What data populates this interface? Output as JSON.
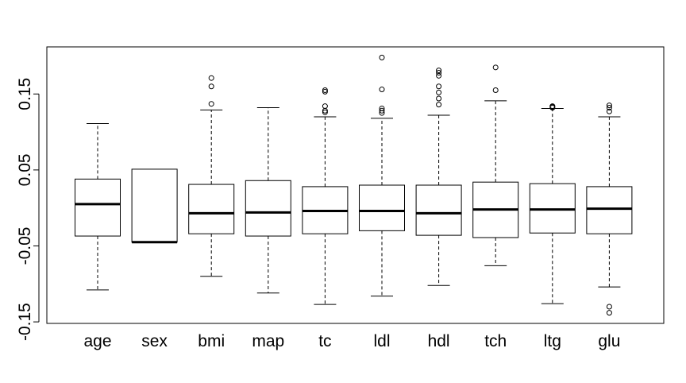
{
  "chart_data": {
    "type": "boxplot",
    "categories": [
      "age",
      "sex",
      "bmi",
      "map",
      "tc",
      "ldl",
      "hdl",
      "tch",
      "ltg",
      "glu"
    ],
    "y_ticks": [
      {
        "value": 0.15,
        "label": "0.15"
      },
      {
        "value": 0.05,
        "label": "0.05"
      },
      {
        "value": -0.05,
        "label": "-0.05"
      },
      {
        "value": -0.15,
        "label": "-0.15"
      }
    ],
    "ylim": [
      -0.152,
      0.212
    ],
    "grid": false,
    "boxes": [
      {
        "name": "age",
        "whisker_low": -0.108,
        "q1": -0.037,
        "median": 0.005,
        "q3": 0.038,
        "whisker_high": 0.111,
        "outliers": []
      },
      {
        "name": "sex",
        "whisker_low": -0.045,
        "q1": -0.045,
        "median": -0.045,
        "q3": 0.051,
        "whisker_high": 0.051,
        "outliers": []
      },
      {
        "name": "bmi",
        "whisker_low": -0.09,
        "q1": -0.034,
        "median": -0.007,
        "q3": 0.031,
        "whisker_high": 0.129,
        "outliers": [
          0.137,
          0.16,
          0.171
        ]
      },
      {
        "name": "map",
        "whisker_low": -0.112,
        "q1": -0.037,
        "median": -0.006,
        "q3": 0.036,
        "whisker_high": 0.132,
        "outliers": []
      },
      {
        "name": "tc",
        "whisker_low": -0.127,
        "q1": -0.034,
        "median": -0.004,
        "q3": 0.028,
        "whisker_high": 0.12,
        "outliers": [
          0.126,
          0.128,
          0.134,
          0.153,
          0.155
        ]
      },
      {
        "name": "ldl",
        "whisker_low": -0.116,
        "q1": -0.03,
        "median": -0.004,
        "q3": 0.03,
        "whisker_high": 0.118,
        "outliers": [
          0.125,
          0.128,
          0.131,
          0.156,
          0.198
        ]
      },
      {
        "name": "hdl",
        "whisker_low": -0.102,
        "q1": -0.036,
        "median": -0.007,
        "q3": 0.03,
        "whisker_high": 0.122,
        "outliers": [
          0.136,
          0.144,
          0.152,
          0.16,
          0.174,
          0.178,
          0.181
        ]
      },
      {
        "name": "tch",
        "whisker_low": -0.076,
        "q1": -0.039,
        "median": -0.002,
        "q3": 0.034,
        "whisker_high": 0.141,
        "outliers": [
          0.155,
          0.185
        ]
      },
      {
        "name": "ltg",
        "whisker_low": -0.126,
        "q1": -0.033,
        "median": -0.002,
        "q3": 0.032,
        "whisker_high": 0.131,
        "outliers": [
          0.132,
          0.133,
          0.134
        ]
      },
      {
        "name": "glu",
        "whisker_low": -0.104,
        "q1": -0.034,
        "median": -0.001,
        "q3": 0.028,
        "whisker_high": 0.12,
        "outliers": [
          -0.13,
          -0.138,
          0.127,
          0.132,
          0.135
        ]
      }
    ]
  }
}
